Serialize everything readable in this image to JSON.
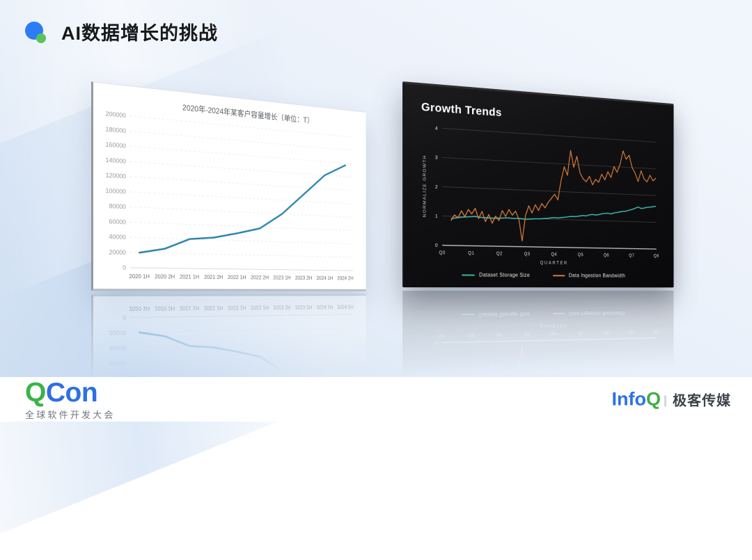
{
  "slide": {
    "title": "AI数据增长的挑战",
    "bullet_blue": "#2e7bf6",
    "bullet_green": "#57c45a"
  },
  "footer": {
    "qcon": {
      "q": "Q",
      "con": "Con",
      "subtitle": "全球软件开发大会",
      "q_color": "#3ab34b",
      "con_color": "#2e6fe3"
    },
    "infoq": {
      "info": "Info",
      "q": "Q",
      "media": "极客传媒",
      "info_color": "#2d72e6",
      "q_color": "#3fae49"
    }
  },
  "chart_data": [
    {
      "type": "line",
      "title": "2020年-2024年某客户容量增长（单位：T）",
      "categories": [
        "2020 1H",
        "2020 2H",
        "2021 1H",
        "2021 2H",
        "2022 1H",
        "2022 2H",
        "2023 1H",
        "2023 2H",
        "2024 1H",
        "2024 2H"
      ],
      "values": [
        20000,
        26000,
        40000,
        43000,
        50000,
        58000,
        80000,
        110000,
        140000,
        157000
      ],
      "xlabel": "",
      "ylabel": "",
      "ylim": [
        0,
        200000
      ],
      "ytick_step": 20000,
      "grid": "dashed-horizontal",
      "line_color": "#2b87ad",
      "legend": "none"
    },
    {
      "type": "line",
      "title": "Growth Trends",
      "xlabel": "QUARTER",
      "ylabel": "NORMALIZE GROWTH",
      "xticks": [
        "Q0",
        "Q1",
        "Q2",
        "Q3",
        "Q4",
        "Q5",
        "Q6",
        "Q7",
        "Q8"
      ],
      "xlim": [
        0,
        8
      ],
      "ylim": [
        0,
        4
      ],
      "yticks": [
        0,
        1,
        2,
        3,
        4
      ],
      "grid": "solid-horizontal",
      "legend_position": "bottom",
      "x": [
        0.3,
        0.42,
        0.54,
        0.66,
        0.78,
        0.9,
        1.02,
        1.14,
        1.26,
        1.38,
        1.5,
        1.62,
        1.74,
        1.86,
        1.98,
        2.1,
        2.22,
        2.34,
        2.46,
        2.58,
        2.7,
        2.82,
        2.94,
        3.06,
        3.18,
        3.3,
        3.42,
        3.54,
        3.66,
        3.78,
        3.9,
        4.02,
        4.14,
        4.26,
        4.38,
        4.5,
        4.62,
        4.74,
        4.86,
        4.98,
        5.1,
        5.22,
        5.34,
        5.46,
        5.58,
        5.7,
        5.82,
        5.94,
        6.06,
        6.18,
        6.3,
        6.42,
        6.54,
        6.66,
        6.78,
        6.9,
        7.02,
        7.14,
        7.26,
        7.38,
        7.5,
        7.62,
        7.74,
        7.86,
        7.98
      ],
      "series": [
        {
          "name": "Dataset Storage Size",
          "color": "#3db8aa",
          "values": [
            0.92,
            0.94,
            0.96,
            0.98,
            0.99,
            1.0,
            1.01,
            1.02,
            1.0,
            0.99,
            0.98,
            0.98,
            0.97,
            0.98,
            0.98,
            0.99,
            1.0,
            1.0,
            0.99,
            0.99,
            1.0,
            0.98,
            0.97,
            0.98,
            0.99,
            1.0,
            1.0,
            1.01,
            1.02,
            1.03,
            1.05,
            1.06,
            1.05,
            1.07,
            1.08,
            1.1,
            1.12,
            1.12,
            1.13,
            1.15,
            1.17,
            1.16,
            1.2,
            1.22,
            1.2,
            1.22,
            1.25,
            1.27,
            1.28,
            1.26,
            1.3,
            1.32,
            1.35,
            1.37,
            1.38,
            1.42,
            1.45,
            1.5,
            1.55,
            1.5,
            1.52,
            1.55,
            1.56,
            1.58,
            1.6
          ]
        },
        {
          "name": "Data Ingestion Bandwidth",
          "color": "#e5813a",
          "values": [
            0.85,
            1.05,
            0.95,
            1.2,
            1.0,
            1.25,
            1.1,
            1.3,
            0.95,
            1.2,
            0.85,
            1.1,
            0.8,
            1.05,
            0.9,
            1.25,
            1.05,
            1.3,
            1.1,
            1.25,
            0.95,
            0.2,
            1.1,
            1.45,
            1.2,
            1.5,
            1.3,
            1.55,
            1.4,
            1.6,
            1.75,
            1.9,
            1.7,
            2.4,
            2.9,
            2.6,
            3.5,
            2.9,
            3.3,
            2.7,
            2.5,
            2.4,
            2.6,
            2.3,
            2.5,
            2.4,
            2.7,
            2.5,
            2.8,
            2.6,
            3.0,
            2.8,
            3.1,
            3.6,
            3.3,
            3.45,
            3.0,
            2.8,
            2.5,
            2.9,
            2.6,
            2.5,
            2.75,
            2.55,
            2.65
          ]
        }
      ]
    }
  ]
}
